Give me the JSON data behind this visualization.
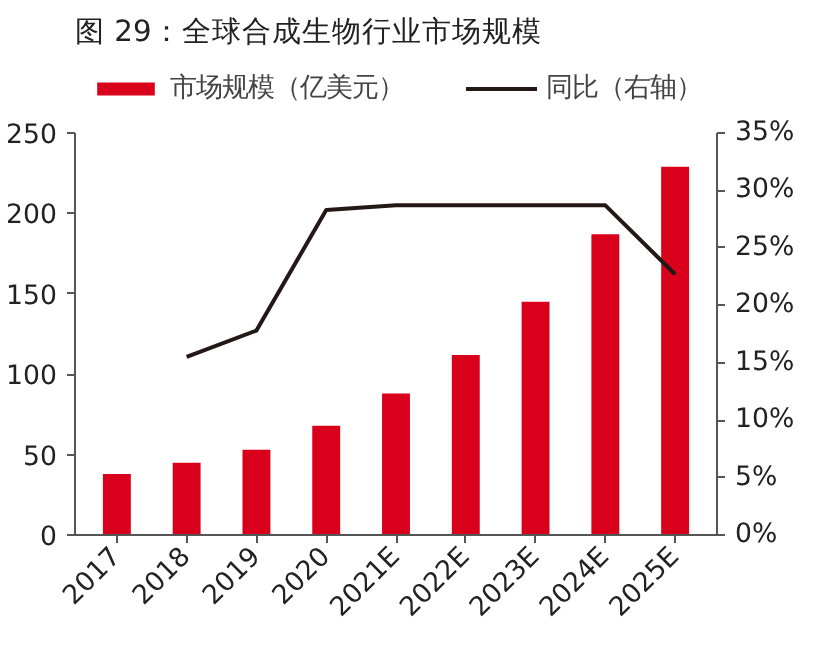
{
  "chart_data": {
    "type": "bar",
    "title": "图 29：全球合成生物行业市场规模",
    "categories": [
      "2017",
      "2018",
      "2019",
      "2020",
      "2021E",
      "2022E",
      "2023E",
      "2024E",
      "2025E"
    ],
    "series": [
      {
        "name": "市场规模（亿美元）",
        "color": "#d9001b",
        "values": [
          38,
          45,
          53,
          68,
          88,
          112,
          145,
          187,
          229
        ]
      },
      {
        "name": "同比（右轴）",
        "type": "line",
        "axis": "y2",
        "color": "#231815",
        "values": [
          null,
          15.5,
          17.8,
          28.3,
          28.7,
          28.7,
          28.7,
          28.7,
          22.7
        ]
      }
    ],
    "ylim": [
      0,
      250
    ],
    "yticks": [
      0,
      50,
      100,
      150,
      200,
      250
    ],
    "y2lim": [
      0,
      35
    ],
    "y2ticks": [
      {
        "value": 0,
        "label": "0%"
      },
      {
        "value": 5,
        "label": "5%"
      },
      {
        "value": 10,
        "label": "10%"
      },
      {
        "value": 15,
        "label": "15%"
      },
      {
        "value": 20,
        "label": "20%"
      },
      {
        "value": 25,
        "label": "25%"
      },
      {
        "value": 30,
        "label": "30%"
      },
      {
        "value": 35,
        "label": "35%"
      }
    ],
    "grid": false,
    "legend": "top"
  }
}
